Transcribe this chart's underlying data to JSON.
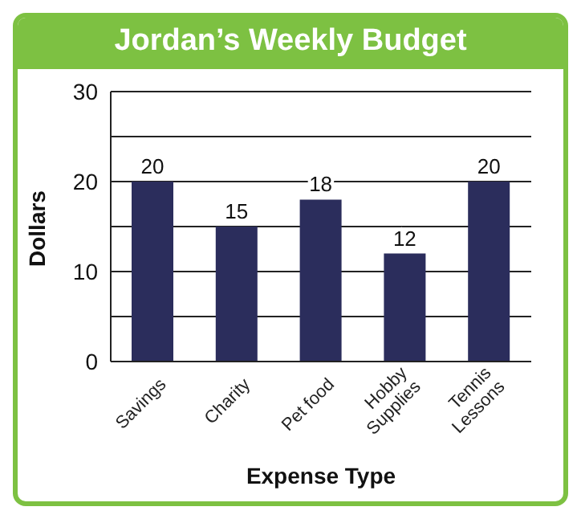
{
  "chart_data": {
    "type": "bar",
    "title": "Jordan’s Weekly Budget",
    "xlabel": "Expense Type",
    "ylabel": "Dollars",
    "categories": [
      "Savings",
      "Charity",
      "Pet food",
      "Hobby\nSupplies",
      "Tennis\nLessons"
    ],
    "values": [
      20,
      15,
      18,
      12,
      20
    ],
    "color": "#2b2d5c",
    "ylim": [
      0,
      30
    ],
    "yticks": [
      0,
      {
        "value": 5,
        "label": null
      },
      10,
      {
        "value": 15,
        "label": null
      },
      20,
      {
        "value": 25,
        "label": null
      },
      30
    ],
    "grid": "y",
    "data_labels": true
  }
}
